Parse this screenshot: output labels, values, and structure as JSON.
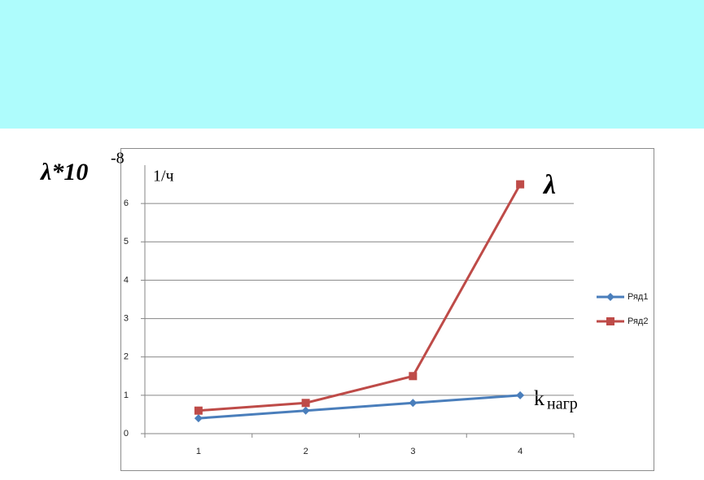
{
  "chart_data": {
    "type": "line",
    "y_label": "λ*10",
    "y_label_exponent": "-8",
    "y_unit": "1/ч",
    "series_annotation": "λ",
    "x_label": "k",
    "x_label_subscript": "нагр",
    "categories": [
      "1",
      "2",
      "3",
      "4"
    ],
    "series": [
      {
        "name": "Ряд1",
        "color": "#4a7ebb",
        "marker": "diamond",
        "values": [
          0.4,
          0.6,
          0.8,
          1.0
        ]
      },
      {
        "name": "Ряд2",
        "color": "#be4b48",
        "marker": "square",
        "values": [
          0.6,
          0.8,
          1.5,
          6.5
        ]
      }
    ],
    "ylim": [
      0,
      7
    ],
    "yticks": [
      0,
      1,
      2,
      3,
      4,
      5,
      6
    ],
    "grid": true,
    "legend": "right"
  }
}
